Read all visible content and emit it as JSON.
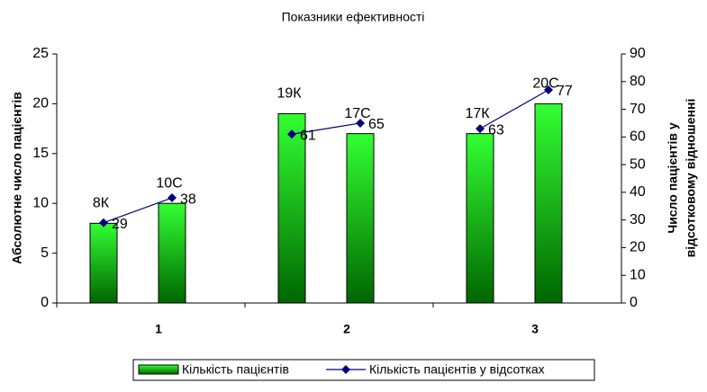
{
  "chart_data": {
    "type": "bar-line",
    "title": "Показники ефективності",
    "ylabel": "Абсолютне число пацієнтів",
    "y2label": [
      "Число пацієнтів у",
      "відсотковому відношенні"
    ],
    "group_labels": [
      "1",
      "2",
      "3"
    ],
    "categories": [
      null,
      null,
      null,
      null,
      null,
      null
    ],
    "ylim": [
      0,
      25
    ],
    "yticks": [
      0,
      5,
      10,
      15,
      20,
      25
    ],
    "y2lim": [
      0,
      90
    ],
    "y2ticks": [
      0,
      10,
      20,
      30,
      40,
      50,
      60,
      70,
      80,
      90
    ],
    "series": [
      {
        "name": "Кількість пацієнтів",
        "type": "bar",
        "color": "#00c800",
        "values": [
          8,
          10,
          19,
          17,
          17,
          20
        ],
        "value_labels": [
          "8К",
          "10С",
          "19К",
          "17С",
          "17К",
          "20С"
        ]
      },
      {
        "name": "Кількість пацієнтів у відсотках",
        "type": "line",
        "axis": "y2",
        "color": "#000080",
        "values": [
          29,
          38,
          61,
          65,
          63,
          77
        ]
      }
    ]
  }
}
